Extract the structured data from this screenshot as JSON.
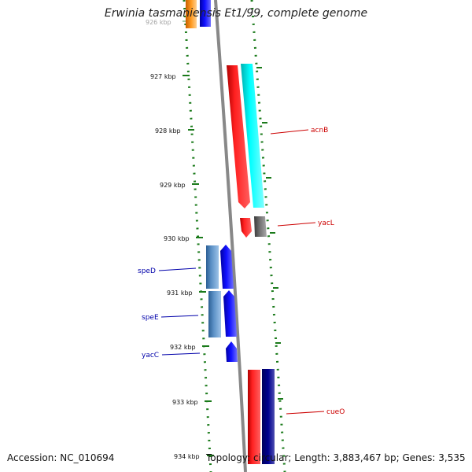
{
  "title": "Erwinia tasmaniensis Et1/99, complete genome",
  "footer": {
    "accession": "Accession: NC_010694",
    "summary": "Topology: circular; Length: 3,883,467 bp; Genes: 3,535"
  },
  "ticks": [
    {
      "label": "926 kbp",
      "faded": true
    },
    {
      "label": "927 kbp"
    },
    {
      "label": "928 kbp"
    },
    {
      "label": "929 kbp"
    },
    {
      "label": "930 kbp"
    },
    {
      "label": "931 kbp"
    },
    {
      "label": "932 kbp"
    },
    {
      "label": "933 kbp"
    },
    {
      "label": "934 kbp"
    }
  ],
  "gene_labels": [
    {
      "name": "acnB",
      "color": "#cc0000"
    },
    {
      "name": "yacL",
      "color": "#cc0000"
    },
    {
      "name": "speD",
      "color": "#0000aa"
    },
    {
      "name": "speE",
      "color": "#0000aa"
    },
    {
      "name": "yacC",
      "color": "#0000aa"
    },
    {
      "name": "cueO",
      "color": "#cc0000"
    }
  ],
  "colors": {
    "backbone": "#888888",
    "tick": "#1a7a1a",
    "forward_gene": "#ff0000",
    "reverse_gene": "#0000ff",
    "cds_teal": "#00e5e5",
    "cds_gray": "#666666",
    "cds_steel": "#4a7fb5",
    "cds_navy": "#000080",
    "cds_orange": "#ff8c00"
  }
}
